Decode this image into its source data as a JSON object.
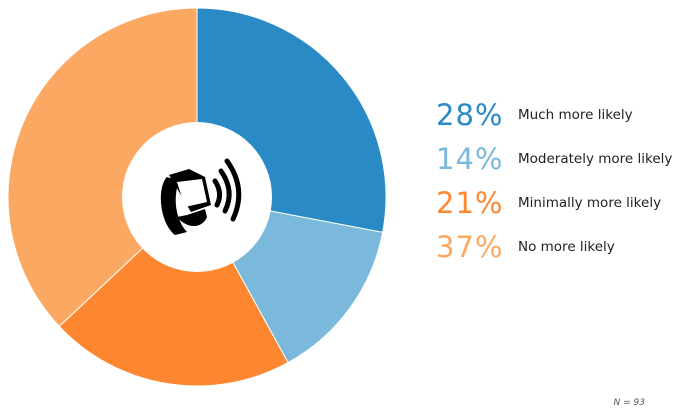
{
  "chart_data": {
    "type": "pie",
    "subtype": "donut",
    "center_icon": "smartwatch-signal-icon",
    "slices": [
      {
        "label": "Much more likely",
        "value": 28,
        "display": "28%",
        "color": "#2a8ac6"
      },
      {
        "label": "Moderately more likely",
        "value": 14,
        "display": "14%",
        "color": "#7ab9db"
      },
      {
        "label": "Minimally more likely",
        "value": 21,
        "display": "21%",
        "color": "#fd8731"
      },
      {
        "label": "No more likely",
        "value": 37,
        "display": "37%",
        "color": "#fba862"
      }
    ],
    "legend_position": "right",
    "note": "N = 93"
  }
}
